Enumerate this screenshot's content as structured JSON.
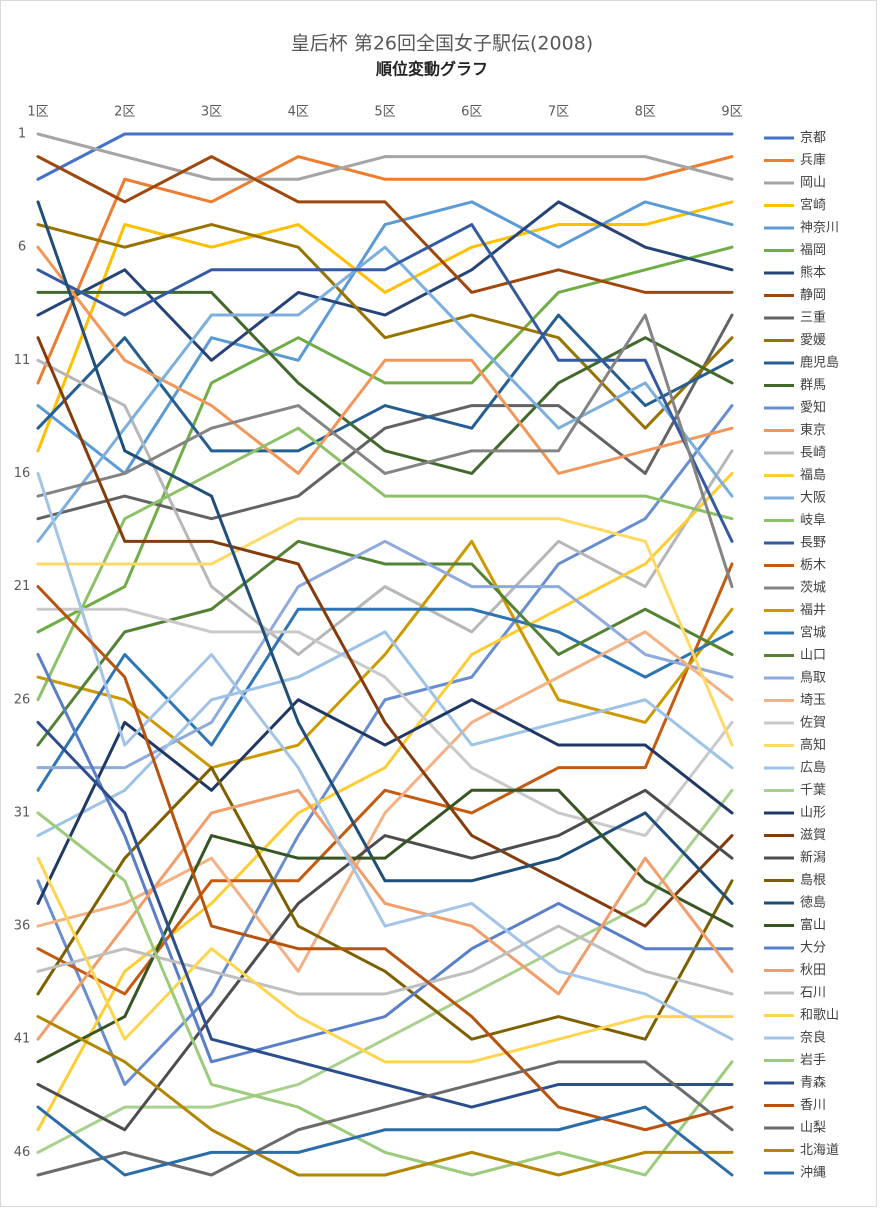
{
  "chart_data": {
    "type": "line",
    "title": "皇后杯 第26回全国女子駅伝(2008)",
    "subtitle": "順位変動グラフ",
    "categories": [
      "1区",
      "2区",
      "3区",
      "4区",
      "5区",
      "6区",
      "7区",
      "8区",
      "9区"
    ],
    "ylim": [
      1,
      47
    ],
    "yticks": [
      1,
      6,
      11,
      16,
      21,
      26,
      31,
      36,
      41,
      46
    ],
    "y_reversed": true,
    "grid": false,
    "legend": "right",
    "series": [
      {
        "name": "京都",
        "color": "#4472c4",
        "values": [
          3,
          1,
          1,
          1,
          1,
          1,
          1,
          1,
          1
        ]
      },
      {
        "name": "兵庫",
        "color": "#ed7d31",
        "values": [
          12,
          3,
          4,
          2,
          3,
          3,
          3,
          3,
          2
        ]
      },
      {
        "name": "岡山",
        "color": "#a5a5a5",
        "values": [
          1,
          2,
          3,
          3,
          2,
          2,
          2,
          2,
          3
        ]
      },
      {
        "name": "宮崎",
        "color": "#ffc000",
        "values": [
          15,
          5,
          6,
          5,
          8,
          6,
          5,
          5,
          4
        ]
      },
      {
        "name": "神奈川",
        "color": "#5b9bd5",
        "values": [
          13,
          16,
          10,
          11,
          5,
          4,
          6,
          4,
          5
        ]
      },
      {
        "name": "福岡",
        "color": "#70ad47",
        "values": [
          23,
          21,
          12,
          10,
          12,
          12,
          8,
          7,
          6
        ]
      },
      {
        "name": "熊本",
        "color": "#264478",
        "values": [
          9,
          7,
          11,
          8,
          9,
          7,
          4,
          6,
          7
        ]
      },
      {
        "name": "静岡",
        "color": "#9e480e",
        "values": [
          2,
          4,
          2,
          4,
          4,
          8,
          7,
          8,
          8
        ]
      },
      {
        "name": "三重",
        "color": "#636363",
        "values": [
          18,
          17,
          18,
          17,
          14,
          13,
          13,
          16,
          9
        ]
      },
      {
        "name": "愛媛",
        "color": "#997300",
        "values": [
          5,
          6,
          5,
          6,
          10,
          9,
          10,
          14,
          10
        ]
      },
      {
        "name": "鹿児島",
        "color": "#255e91",
        "values": [
          14,
          10,
          15,
          15,
          13,
          14,
          9,
          13,
          11
        ]
      },
      {
        "name": "群馬",
        "color": "#43682b",
        "values": [
          8,
          8,
          8,
          12,
          15,
          16,
          12,
          10,
          12
        ]
      },
      {
        "name": "愛知",
        "color": "#698ed0",
        "values": [
          34,
          43,
          39,
          32,
          26,
          25,
          20,
          18,
          13
        ]
      },
      {
        "name": "東京",
        "color": "#f1975a",
        "values": [
          6,
          11,
          13,
          16,
          11,
          11,
          16,
          15,
          14
        ]
      },
      {
        "name": "長崎",
        "color": "#b7b7b7",
        "values": [
          11,
          13,
          21,
          24,
          21,
          23,
          19,
          21,
          15
        ]
      },
      {
        "name": "福島",
        "color": "#ffcd33",
        "values": [
          45,
          38,
          35,
          31,
          29,
          24,
          22,
          20,
          16
        ]
      },
      {
        "name": "大阪",
        "color": "#7cafdd",
        "values": [
          19,
          14,
          9,
          9,
          6,
          10,
          14,
          12,
          17
        ]
      },
      {
        "name": "岐阜",
        "color": "#8cc168",
        "values": [
          26,
          18,
          16,
          14,
          17,
          17,
          17,
          17,
          18
        ]
      },
      {
        "name": "長野",
        "color": "#335aa1",
        "values": [
          7,
          9,
          7,
          7,
          7,
          5,
          11,
          11,
          19
        ]
      },
      {
        "name": "栃木",
        "color": "#c55a11",
        "values": [
          37,
          39,
          34,
          34,
          30,
          31,
          29,
          29,
          20
        ]
      },
      {
        "name": "茨城",
        "color": "#848484",
        "values": [
          17,
          16,
          14,
          13,
          16,
          15,
          15,
          9,
          21
        ]
      },
      {
        "name": "福井",
        "color": "#cc9a00",
        "values": [
          25,
          26,
          29,
          28,
          24,
          19,
          26,
          27,
          22
        ]
      },
      {
        "name": "宮城",
        "color": "#2e75b6",
        "values": [
          30,
          24,
          28,
          22,
          22,
          22,
          23,
          25,
          23
        ]
      },
      {
        "name": "山口",
        "color": "#548235",
        "values": [
          28,
          23,
          22,
          19,
          20,
          20,
          24,
          22,
          24
        ]
      },
      {
        "name": "鳥取",
        "color": "#8faadc",
        "values": [
          29,
          29,
          27,
          21,
          19,
          21,
          21,
          24,
          25
        ]
      },
      {
        "name": "埼玉",
        "color": "#f4b183",
        "values": [
          36,
          35,
          33,
          38,
          31,
          27,
          25,
          23,
          26
        ]
      },
      {
        "name": "佐賀",
        "color": "#c9c9c9",
        "values": [
          22,
          22,
          23,
          23,
          25,
          29,
          31,
          32,
          27
        ]
      },
      {
        "name": "高知",
        "color": "#ffd966",
        "values": [
          20,
          20,
          20,
          18,
          18,
          18,
          18,
          19,
          28
        ]
      },
      {
        "name": "広島",
        "color": "#9dc3e6",
        "values": [
          32,
          30,
          26,
          25,
          23,
          28,
          27,
          26,
          29
        ]
      },
      {
        "name": "千葉",
        "color": "#a9d18e",
        "values": [
          46,
          44,
          44,
          43,
          41,
          39,
          37,
          35,
          30
        ]
      },
      {
        "name": "山形",
        "color": "#203864",
        "values": [
          35,
          27,
          30,
          26,
          28,
          26,
          28,
          28,
          31
        ]
      },
      {
        "name": "滋賀",
        "color": "#843c0c",
        "values": [
          10,
          19,
          19,
          20,
          27,
          32,
          34,
          36,
          32
        ]
      },
      {
        "name": "新潟",
        "color": "#4d4d4d",
        "values": [
          43,
          45,
          40,
          35,
          32,
          33,
          32,
          30,
          33
        ]
      },
      {
        "name": "島根",
        "color": "#7f6000",
        "values": [
          39,
          33,
          29,
          36,
          38,
          41,
          40,
          41,
          34
        ]
      },
      {
        "name": "徳島",
        "color": "#1f4e79",
        "values": [
          4,
          15,
          17,
          27,
          34,
          34,
          33,
          31,
          35
        ]
      },
      {
        "name": "富山",
        "color": "#375623",
        "values": [
          42,
          40,
          32,
          33,
          33,
          30,
          30,
          34,
          36
        ]
      },
      {
        "name": "大分",
        "color": "#5a7fc9",
        "values": [
          24,
          32,
          42,
          41,
          40,
          37,
          35,
          37,
          37
        ]
      },
      {
        "name": "秋田",
        "color": "#f09e6b",
        "values": [
          41,
          36,
          31,
          30,
          35,
          36,
          39,
          33,
          38
        ]
      },
      {
        "name": "石川",
        "color": "#bfbfbf",
        "values": [
          38,
          37,
          38,
          39,
          39,
          38,
          36,
          38,
          39
        ]
      },
      {
        "name": "和歌山",
        "color": "#ffd54f",
        "values": [
          33,
          41,
          37,
          40,
          42,
          42,
          41,
          40,
          40
        ]
      },
      {
        "name": "奈良",
        "color": "#a3c4e6",
        "values": [
          16,
          28,
          24,
          29,
          36,
          35,
          38,
          39,
          41
        ]
      },
      {
        "name": "岩手",
        "color": "#9bcb7b",
        "values": [
          31,
          34,
          43,
          44,
          46,
          47,
          46,
          47,
          42
        ]
      },
      {
        "name": "青森",
        "color": "#2c4d8e",
        "values": [
          27,
          31,
          41,
          42,
          43,
          44,
          43,
          43,
          43
        ]
      },
      {
        "name": "香川",
        "color": "#b8530f",
        "values": [
          21,
          25,
          36,
          37,
          37,
          40,
          44,
          45,
          44
        ]
      },
      {
        "name": "山梨",
        "color": "#6b6b6b",
        "values": [
          47,
          46,
          47,
          45,
          44,
          43,
          42,
          42,
          45
        ]
      },
      {
        "name": "北海道",
        "color": "#b38600",
        "values": [
          40,
          42,
          45,
          47,
          47,
          46,
          47,
          46,
          46
        ]
      },
      {
        "name": "沖縄",
        "color": "#2b6da8",
        "values": [
          44,
          47,
          46,
          46,
          45,
          45,
          45,
          44,
          47
        ]
      }
    ]
  }
}
